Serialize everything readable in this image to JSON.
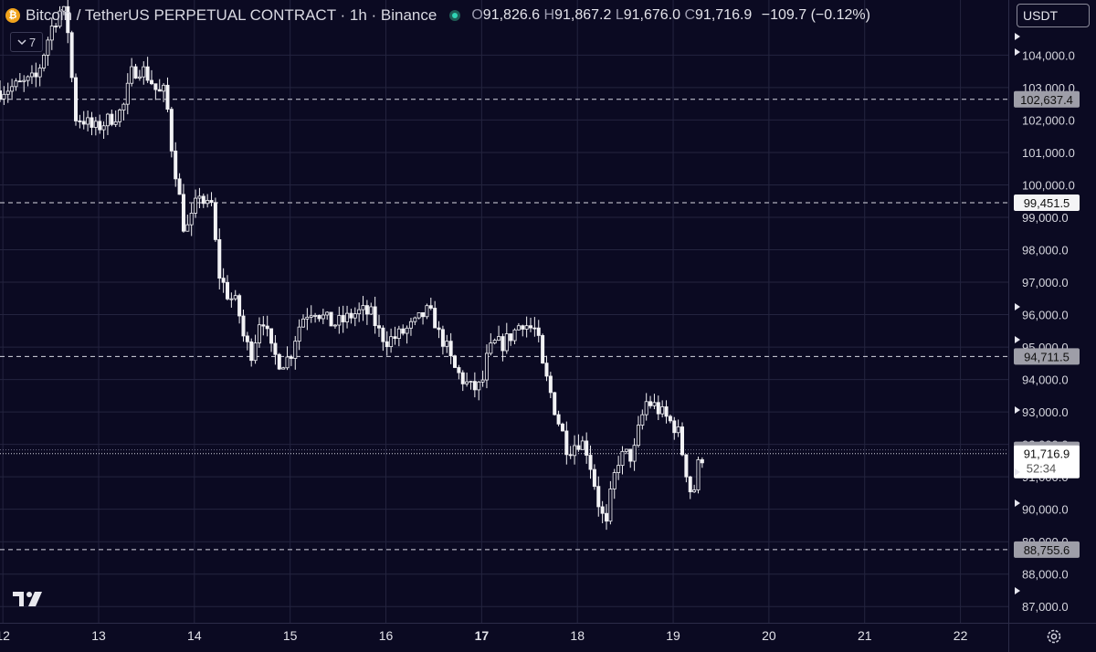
{
  "header": {
    "symbol_icon": "bitcoin-coin-icon",
    "symbol_icon_glyph": "₿",
    "title": "Bitcoin / TetherUS PERPETUAL CONTRACT · 1h · Binance",
    "open_key": "O",
    "open": "91,826.6",
    "high_key": "H",
    "high": "91,867.2",
    "low_key": "L",
    "low": "91,676.0",
    "close_key": "C",
    "close": "91,716.9",
    "change": "−109.7 (−0.12%)"
  },
  "indicator_toggle": {
    "icon": "chevron-down-icon",
    "label": "7"
  },
  "currency_select": {
    "value": "USDT"
  },
  "colors": {
    "background": "#0b0a22",
    "candle": "#f2f2f5",
    "grid": "#24243f",
    "text": "#d6d6de"
  },
  "chart_data": {
    "type": "candlestick",
    "title": "Bitcoin / TetherUS PERPETUAL CONTRACT · 1h · Binance",
    "interval": "1h",
    "x_tick_labels": [
      "12",
      "13",
      "14",
      "15",
      "16",
      "17",
      "18",
      "19",
      "20",
      "21",
      "22"
    ],
    "y_tick_labels": [
      "104,000.0",
      "103,000.0",
      "102,000.0",
      "101,000.0",
      "100,000.0",
      "99,000.0",
      "98,000.0",
      "97,000.0",
      "96,000.0",
      "95,000.0",
      "94,000.0",
      "93,000.0",
      "92,000.0",
      "91,000.0",
      "90,000.0",
      "89,000.0",
      "88,000.0",
      "87,000.0"
    ],
    "y_ticks": [
      104000,
      103000,
      102000,
      101000,
      100000,
      99000,
      98000,
      97000,
      96000,
      95000,
      94000,
      93000,
      92000,
      91000,
      90000,
      89000,
      88000,
      87000
    ],
    "ylim": [
      86500,
      105700
    ],
    "xlim_days": [
      11.97,
      22.5
    ],
    "grid": true,
    "price_lines": [
      {
        "value": 102637.4,
        "label": "102,637.4"
      },
      {
        "value": 99451.5,
        "label": "99,451.5"
      },
      {
        "value": 94711.5,
        "label": "94,711.5"
      },
      {
        "value": 88755.6,
        "label": "88,755.6"
      }
    ],
    "last_price_label": "91,832.4",
    "current_price": {
      "value": 91716.9,
      "label": "91,716.9",
      "countdown": "52:34"
    },
    "close_path": [
      [
        11.97,
        102900
      ],
      [
        12.2,
        103100
      ],
      [
        12.35,
        103300
      ],
      [
        12.5,
        104800
      ],
      [
        12.62,
        105500
      ],
      [
        12.7,
        104500
      ],
      [
        12.74,
        102100
      ],
      [
        12.85,
        102000
      ],
      [
        12.95,
        101700
      ],
      [
        13.05,
        101900
      ],
      [
        13.15,
        102100
      ],
      [
        13.25,
        102300
      ],
      [
        13.35,
        103500
      ],
      [
        13.45,
        103600
      ],
      [
        13.55,
        103200
      ],
      [
        13.62,
        102800
      ],
      [
        13.7,
        102900
      ],
      [
        13.75,
        101400
      ],
      [
        13.82,
        100100
      ],
      [
        13.9,
        98500
      ],
      [
        13.98,
        99000
      ],
      [
        14.05,
        99800
      ],
      [
        14.12,
        99300
      ],
      [
        14.18,
        99400
      ],
      [
        14.25,
        97300
      ],
      [
        14.35,
        96600
      ],
      [
        14.45,
        96300
      ],
      [
        14.52,
        95200
      ],
      [
        14.6,
        94800
      ],
      [
        14.7,
        96100
      ],
      [
        14.8,
        94900
      ],
      [
        14.9,
        94500
      ],
      [
        15.0,
        94700
      ],
      [
        15.07,
        95500
      ],
      [
        15.15,
        96000
      ],
      [
        15.25,
        96200
      ],
      [
        15.35,
        95900
      ],
      [
        15.45,
        95700
      ],
      [
        15.55,
        95800
      ],
      [
        15.65,
        96000
      ],
      [
        15.75,
        96100
      ],
      [
        15.85,
        96000
      ],
      [
        15.92,
        95500
      ],
      [
        16.0,
        95200
      ],
      [
        16.1,
        95300
      ],
      [
        16.2,
        95500
      ],
      [
        16.3,
        95700
      ],
      [
        16.42,
        96100
      ],
      [
        16.5,
        95900
      ],
      [
        16.55,
        95400
      ],
      [
        16.62,
        95100
      ],
      [
        16.7,
        94400
      ],
      [
        16.8,
        94000
      ],
      [
        16.9,
        93700
      ],
      [
        17.0,
        93800
      ],
      [
        17.05,
        94600
      ],
      [
        17.12,
        95100
      ],
      [
        17.22,
        95100
      ],
      [
        17.32,
        95400
      ],
      [
        17.42,
        95800
      ],
      [
        17.5,
        95600
      ],
      [
        17.58,
        95500
      ],
      [
        17.62,
        94500
      ],
      [
        17.7,
        93800
      ],
      [
        17.78,
        92900
      ],
      [
        17.85,
        92300
      ],
      [
        17.9,
        91800
      ],
      [
        18.0,
        92100
      ],
      [
        18.08,
        92000
      ],
      [
        18.15,
        91200
      ],
      [
        18.22,
        90200
      ],
      [
        18.3,
        89400
      ],
      [
        18.35,
        90500
      ],
      [
        18.42,
        91500
      ],
      [
        18.5,
        91700
      ],
      [
        18.58,
        91600
      ],
      [
        18.65,
        92600
      ],
      [
        18.72,
        93300
      ],
      [
        18.8,
        93200
      ],
      [
        18.9,
        92900
      ],
      [
        19.0,
        92600
      ],
      [
        19.05,
        92400
      ],
      [
        19.12,
        91400
      ],
      [
        19.2,
        90300
      ],
      [
        19.27,
        91500
      ],
      [
        19.33,
        91717
      ]
    ],
    "seed": 7
  },
  "footer": {
    "logo": "tradingview-logo-icon",
    "settings_icon": "gear-icon"
  }
}
